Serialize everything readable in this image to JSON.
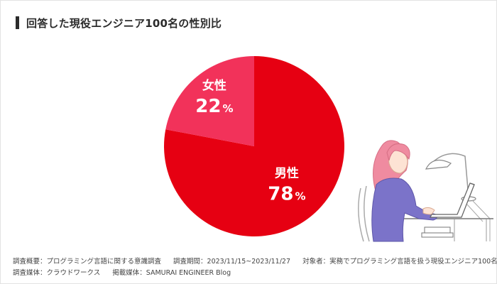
{
  "title": "回答した現役エンジニア100名の性別比",
  "chart_data": {
    "type": "pie",
    "title": "回答した現役エンジニア100名の性別比",
    "slices": [
      {
        "label": "男性",
        "value": 78,
        "display": "78",
        "unit": "%",
        "color": "#e60012"
      },
      {
        "label": "女性",
        "value": 22,
        "display": "22",
        "unit": "%",
        "color": "#f2325a"
      }
    ],
    "start": "top",
    "direction": "counter-clockwise-for-second-slice"
  },
  "footer": {
    "line1": {
      "overview": "調査概要：プログラミング言語に関する意識調査",
      "period": "調査期間：2023/11/15~2023/11/27",
      "subjects": "対象者：実務でプログラミング言語を扱う現役エンジニア100名"
    },
    "line2": {
      "medium": "調査媒体：クラウドワークス",
      "publisher": "掲載媒体：SAMURAI ENGINEER Blog"
    }
  },
  "illustration": {
    "name": "woman-at-laptop-illustration"
  }
}
